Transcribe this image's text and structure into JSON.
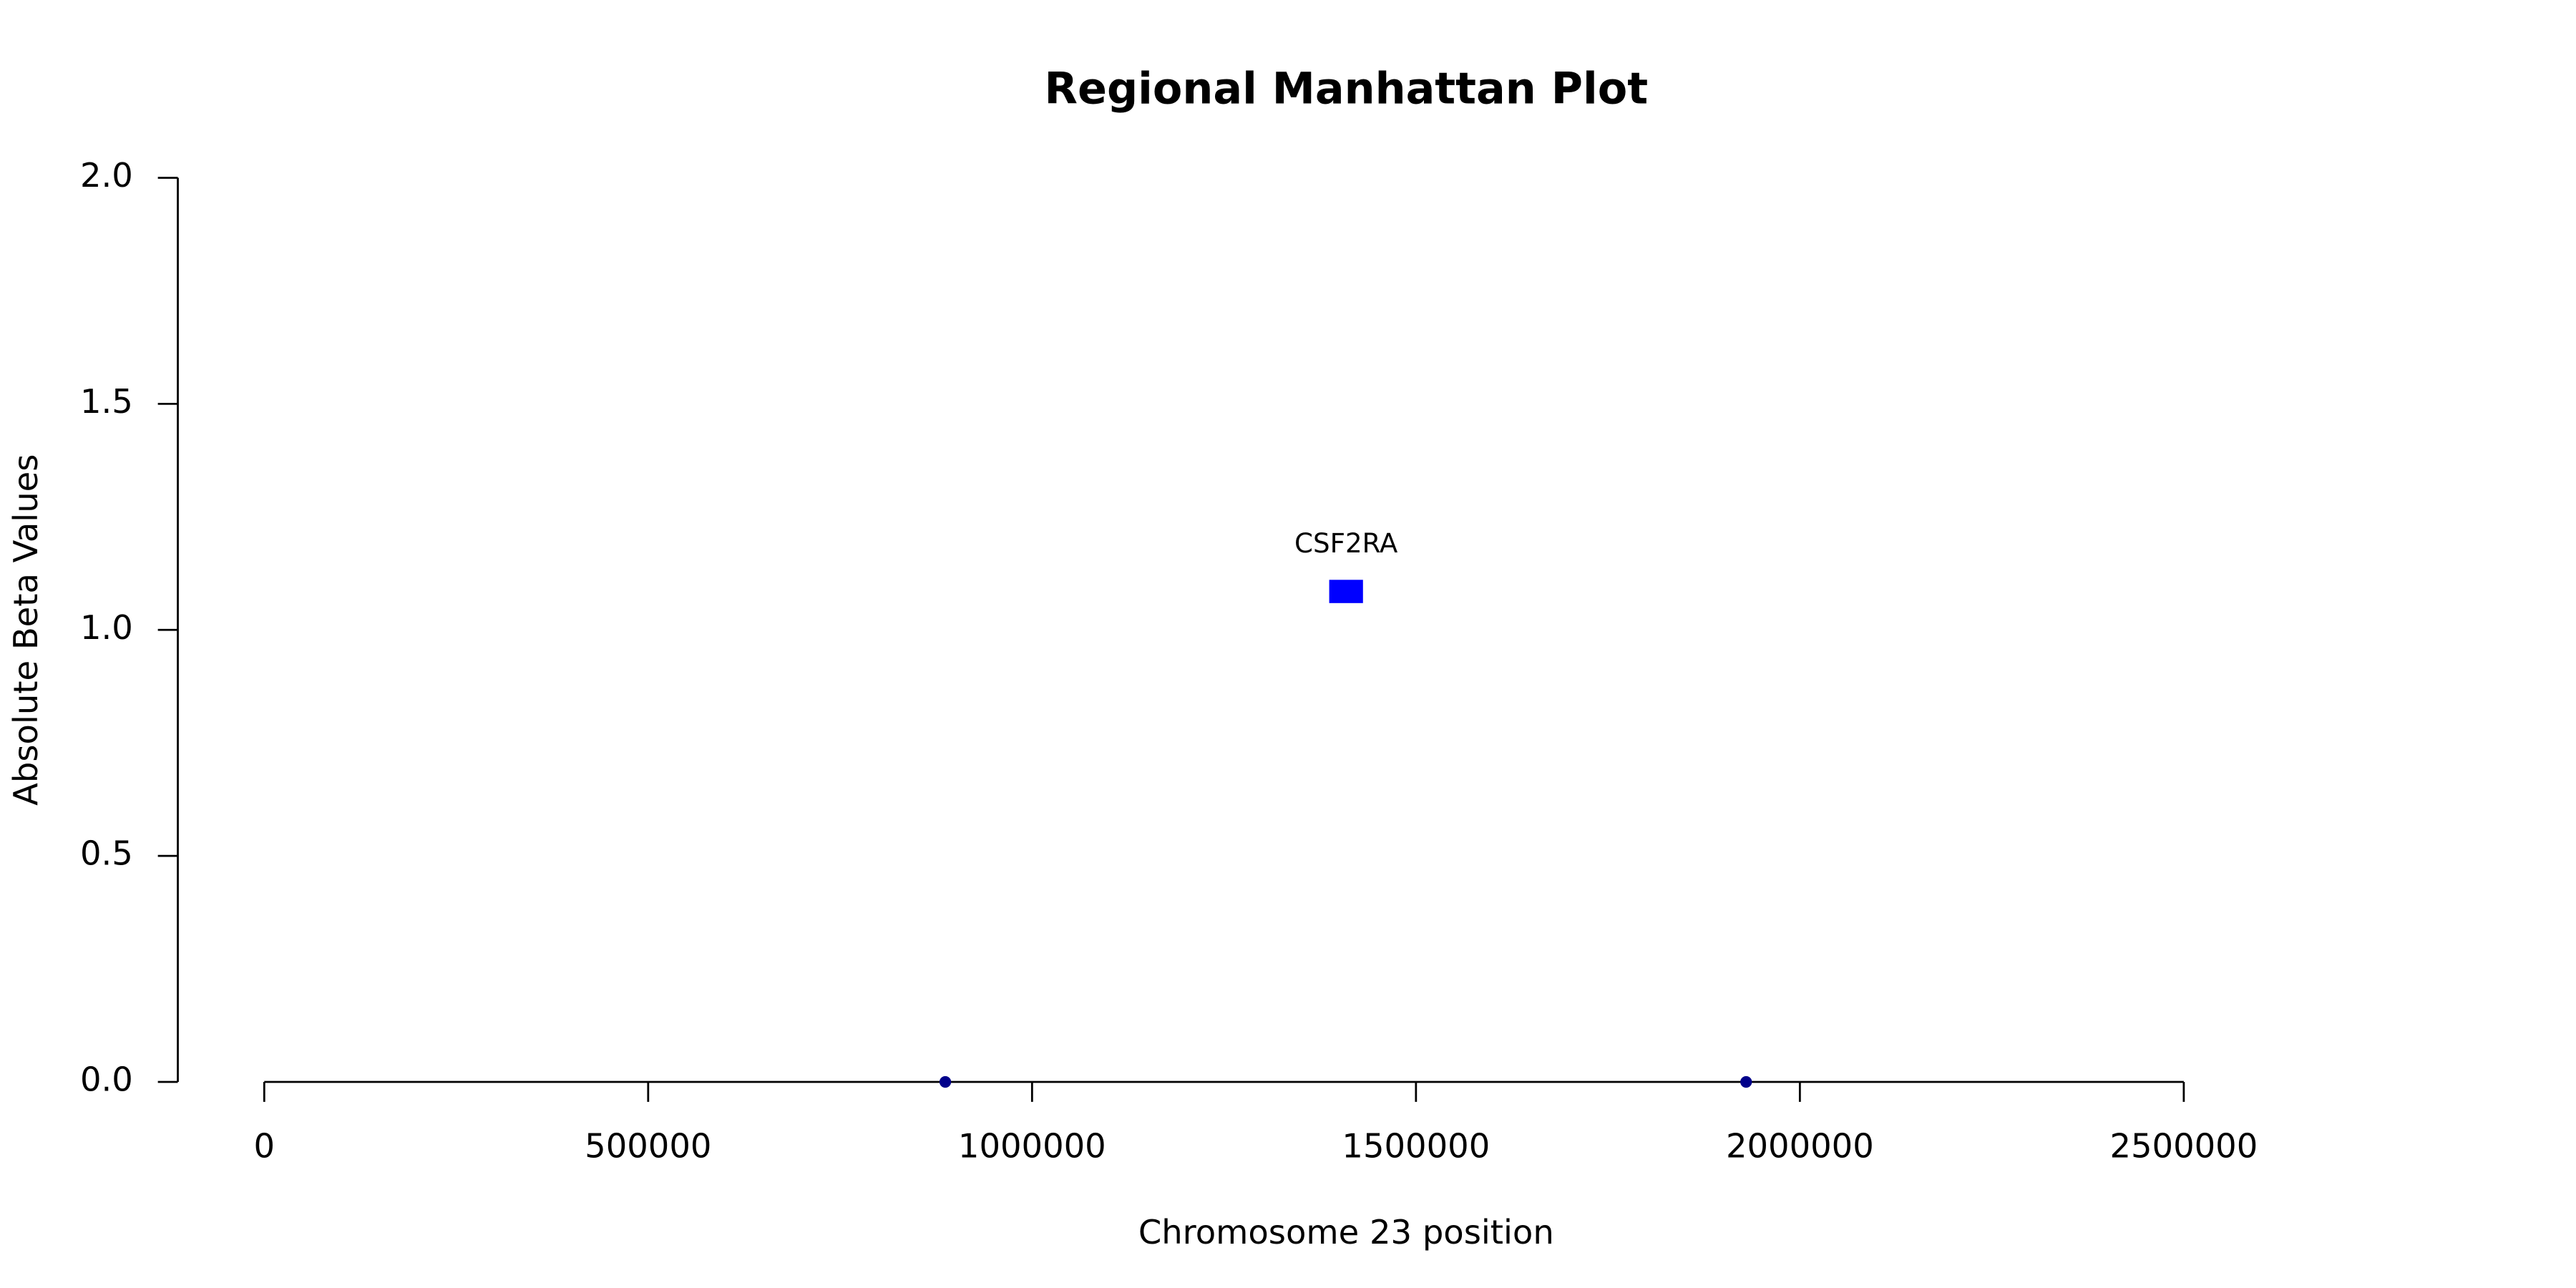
{
  "chart_data": {
    "type": "scatter",
    "title": "Regional Manhattan Plot",
    "x_label": "Chromosome 23 position",
    "y_label": "Absolute Beta Values",
    "x": [
      887000,
      1930000
    ],
    "values": [
      0,
      0
    ],
    "color": "#00008b",
    "genes": [
      {
        "name": "CSF2RA",
        "start": 1387000,
        "end": 1431000,
        "value": 1.085,
        "color": "#0000ff"
      }
    ],
    "xlim": [
      0,
      2500000
    ],
    "xticks": [
      0,
      500000,
      1000000,
      1500000,
      2000000,
      2500000
    ],
    "ylim": [
      0,
      2
    ],
    "yticks": [
      {
        "value": 0,
        "label": "0.0"
      },
      {
        "value": 0.5,
        "label": "0.5"
      },
      {
        "value": 1,
        "label": "1.0"
      },
      {
        "value": 1.5,
        "label": "1.5"
      },
      {
        "value": 2,
        "label": "2.0"
      }
    ],
    "grid": false
  }
}
